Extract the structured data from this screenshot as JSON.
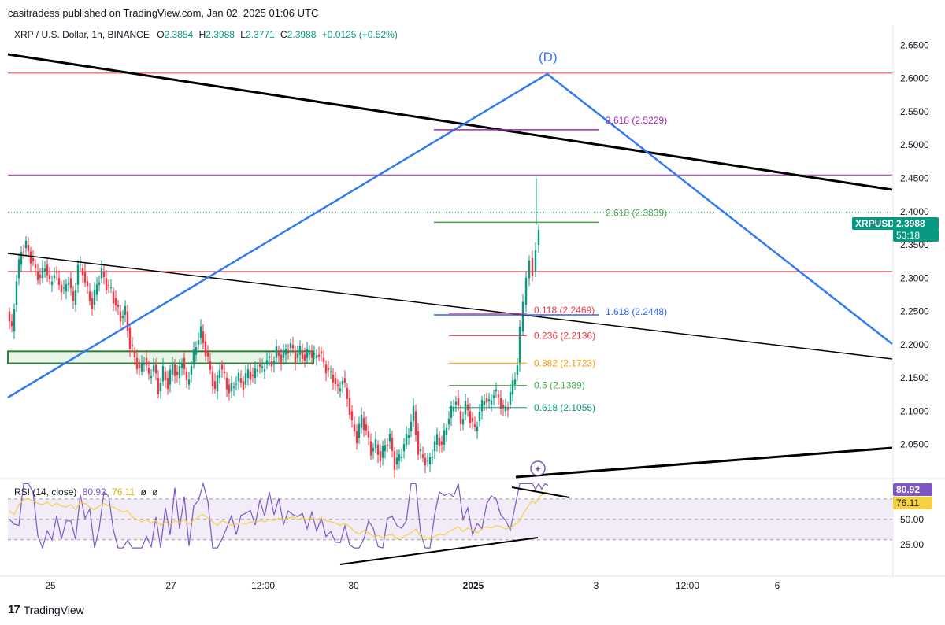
{
  "header": {
    "publisher_text": "casitradess published on TradingView.com, Jan 02, 2025 01:06 UTC"
  },
  "legend": {
    "symbol": "XRP / U.S. Dollar, 1h, BINANCE",
    "o_label": "O",
    "o_value": "2.3854",
    "h_label": "H",
    "h_value": "2.3988",
    "l_label": "L",
    "l_value": "2.3771",
    "c_label": "C",
    "c_value": "2.3988",
    "change": "+0.0125 (+0.52%)"
  },
  "price_tag": {
    "symbol": "XRPUSD",
    "price": "2.3988",
    "countdown": "53:18"
  },
  "rsi_legend": {
    "label": "RSI (14, close)",
    "value1": "80.92",
    "value2": "76.11",
    "extra1": "ø",
    "extra2": "ø"
  },
  "rsi_tags": {
    "rsi": "80.92",
    "ma": "76.11"
  },
  "footer": {
    "brand": "TradingView"
  },
  "colors": {
    "up": "#089981",
    "down": "#f23645",
    "blue_line": "#3179f5",
    "rsi_line": "#7e57c2",
    "rsi_ma": "#f5d142",
    "trend": "#000000",
    "green_zone": "#2e7d32"
  },
  "chart_data": {
    "type": "candlestick",
    "y_axis": {
      "min": 2.0,
      "max": 2.68,
      "ticks": [
        "2.6500",
        "2.6000",
        "2.5500",
        "2.5000",
        "2.4500",
        "2.4000",
        "2.3500",
        "2.3000",
        "2.2500",
        "2.2000",
        "2.1500",
        "2.1000",
        "2.0500"
      ]
    },
    "x_axis": {
      "ticks": [
        "25",
        "27",
        "12:00",
        "30",
        "2025",
        "3",
        "12:00",
        "6"
      ]
    },
    "pattern_label": "(D)",
    "fib_levels": [
      {
        "label": "3.618 (2.5229)",
        "price": 2.5229,
        "color": "#9c27b0"
      },
      {
        "label": "2.618 (2.3839)",
        "price": 2.3839,
        "color": "#43a047"
      },
      {
        "label": "1.618 (2.2448)",
        "price": 2.2448,
        "color": "#2962ff"
      }
    ],
    "retracement_levels": [
      {
        "label": "0.118 (2.2469)",
        "price": 2.2469,
        "color": "#f23645"
      },
      {
        "label": "0.236 (2.2136)",
        "price": 2.2136,
        "color": "#f23645"
      },
      {
        "label": "0.382 (2.1723)",
        "price": 2.1723,
        "color": "#ff9800"
      },
      {
        "label": "0.5 (2.1389)",
        "price": 2.1389,
        "color": "#4caf50"
      },
      {
        "label": "0.618 (2.1055)",
        "price": 2.1055,
        "color": "#089981"
      }
    ],
    "horizontal_lines": [
      {
        "price": 2.608,
        "color": "#f23645"
      },
      {
        "price": 2.455,
        "color": "#9c27b0"
      },
      {
        "price": 2.31,
        "color": "#f23645"
      }
    ],
    "price_path": [
      [
        0,
        2.25
      ],
      [
        6,
        2.22
      ],
      [
        12,
        2.3
      ],
      [
        18,
        2.34
      ],
      [
        24,
        2.35
      ],
      [
        30,
        2.33
      ],
      [
        36,
        2.31
      ],
      [
        42,
        2.3
      ],
      [
        48,
        2.32
      ],
      [
        54,
        2.29
      ],
      [
        60,
        2.31
      ],
      [
        66,
        2.29
      ],
      [
        72,
        2.28
      ],
      [
        78,
        2.3
      ],
      [
        84,
        2.26
      ],
      [
        90,
        2.32
      ],
      [
        96,
        2.31
      ],
      [
        102,
        2.28
      ],
      [
        108,
        2.26
      ],
      [
        114,
        2.29
      ],
      [
        120,
        2.31
      ],
      [
        126,
        2.29
      ],
      [
        132,
        2.28
      ],
      [
        138,
        2.26
      ],
      [
        144,
        2.24
      ],
      [
        150,
        2.25
      ],
      [
        156,
        2.2
      ],
      [
        162,
        2.18
      ],
      [
        168,
        2.16
      ],
      [
        174,
        2.18
      ],
      [
        180,
        2.15
      ],
      [
        186,
        2.17
      ],
      [
        192,
        2.13
      ],
      [
        198,
        2.16
      ],
      [
        204,
        2.14
      ],
      [
        210,
        2.17
      ],
      [
        216,
        2.15
      ],
      [
        222,
        2.18
      ],
      [
        228,
        2.14
      ],
      [
        234,
        2.17
      ],
      [
        240,
        2.2
      ],
      [
        246,
        2.22
      ],
      [
        252,
        2.19
      ],
      [
        258,
        2.16
      ],
      [
        264,
        2.13
      ],
      [
        270,
        2.17
      ],
      [
        276,
        2.15
      ],
      [
        282,
        2.13
      ],
      [
        288,
        2.14
      ],
      [
        294,
        2.15
      ],
      [
        300,
        2.14
      ],
      [
        306,
        2.16
      ],
      [
        312,
        2.15
      ],
      [
        318,
        2.17
      ],
      [
        324,
        2.16
      ],
      [
        330,
        2.18
      ],
      [
        336,
        2.17
      ],
      [
        342,
        2.19
      ],
      [
        348,
        2.18
      ],
      [
        354,
        2.19
      ],
      [
        360,
        2.2
      ],
      [
        366,
        2.18
      ],
      [
        372,
        2.19
      ],
      [
        378,
        2.18
      ],
      [
        384,
        2.19
      ],
      [
        390,
        2.18
      ],
      [
        396,
        2.19
      ],
      [
        402,
        2.17
      ],
      [
        408,
        2.16
      ],
      [
        414,
        2.15
      ],
      [
        420,
        2.13
      ],
      [
        426,
        2.15
      ],
      [
        432,
        2.12
      ],
      [
        438,
        2.08
      ],
      [
        444,
        2.06
      ],
      [
        450,
        2.09
      ],
      [
        456,
        2.07
      ],
      [
        462,
        2.04
      ],
      [
        468,
        2.05
      ],
      [
        474,
        2.03
      ],
      [
        480,
        2.05
      ],
      [
        486,
        2.06
      ],
      [
        492,
        2.02
      ],
      [
        498,
        2.03
      ],
      [
        504,
        2.05
      ],
      [
        510,
        2.07
      ],
      [
        516,
        2.1
      ],
      [
        522,
        2.04
      ],
      [
        528,
        2.03
      ],
      [
        534,
        2.02
      ],
      [
        540,
        2.04
      ],
      [
        546,
        2.06
      ],
      [
        552,
        2.05
      ],
      [
        558,
        2.08
      ],
      [
        564,
        2.1
      ],
      [
        570,
        2.12
      ],
      [
        576,
        2.08
      ],
      [
        582,
        2.11
      ],
      [
        588,
        2.09
      ],
      [
        594,
        2.07
      ],
      [
        600,
        2.1
      ],
      [
        606,
        2.12
      ],
      [
        612,
        2.11
      ],
      [
        618,
        2.13
      ],
      [
        624,
        2.12
      ],
      [
        630,
        2.1
      ],
      [
        636,
        2.11
      ],
      [
        642,
        2.14
      ],
      [
        648,
        2.17
      ],
      [
        652,
        2.22
      ],
      [
        656,
        2.26
      ],
      [
        660,
        2.3
      ],
      [
        664,
        2.33
      ],
      [
        668,
        2.31
      ],
      [
        672,
        2.35
      ],
      [
        676,
        2.38
      ],
      [
        680,
        2.4
      ],
      [
        684,
        2.399
      ]
    ]
  }
}
